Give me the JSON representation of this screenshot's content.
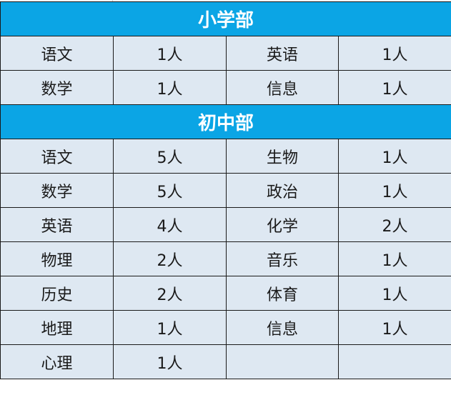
{
  "colors": {
    "header": "#0ba5e5",
    "cell": "#dee8f2"
  },
  "sections": [
    {
      "title": "小学部",
      "rows": [
        [
          "语文",
          "1人",
          "英语",
          "1人"
        ],
        [
          "数学",
          "1人",
          "信息",
          "1人"
        ]
      ]
    },
    {
      "title": "初中部",
      "rows": [
        [
          "语文",
          "5人",
          "生物",
          "1人"
        ],
        [
          "数学",
          "5人",
          "政治",
          "1人"
        ],
        [
          "英语",
          "4人",
          "化学",
          "2人"
        ],
        [
          "物理",
          "2人",
          "音乐",
          "1人"
        ],
        [
          "历史",
          "2人",
          "体育",
          "1人"
        ],
        [
          "地理",
          "1人",
          "信息",
          "1人"
        ],
        [
          "心理",
          "1人",
          "",
          ""
        ]
      ]
    }
  ]
}
